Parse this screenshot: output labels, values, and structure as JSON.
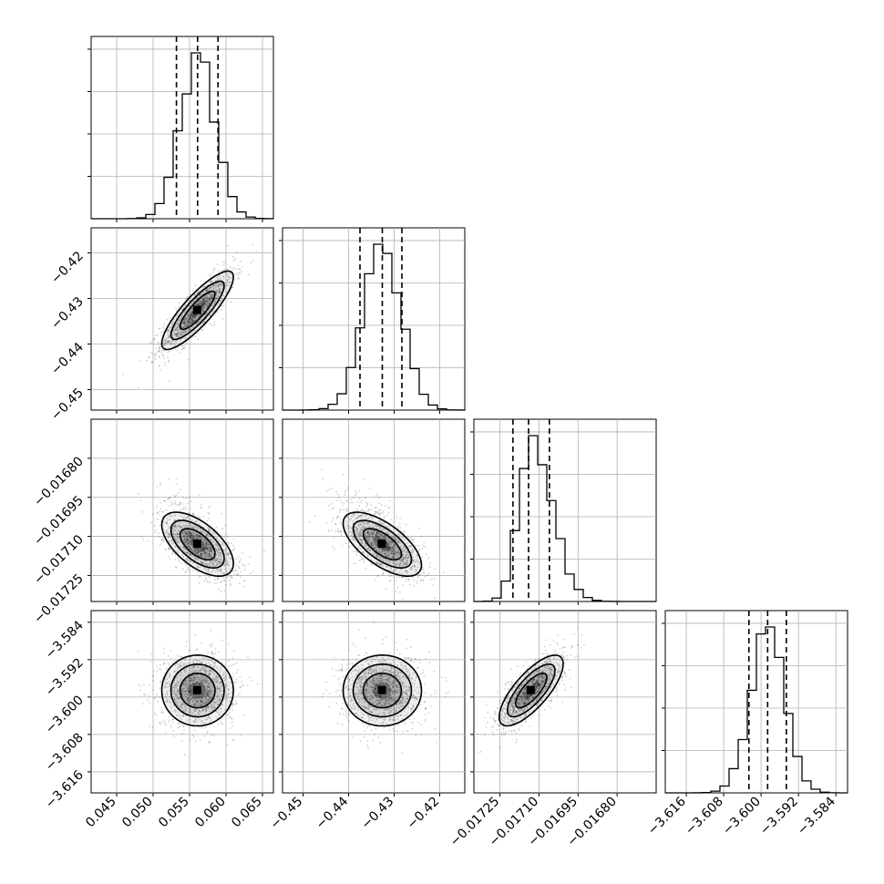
{
  "chart_data": {
    "type": "corner",
    "grid": true,
    "colors": {
      "line": "#000000",
      "grid": "#b0b0b0",
      "points": "#000000"
    },
    "parameters": [
      {
        "ticks": [
          "0.045",
          "0.050",
          "0.055",
          "0.060",
          "0.065"
        ],
        "tick_values": [
          0.045,
          0.05,
          0.055,
          0.06,
          0.065
        ],
        "range": [
          0.0415,
          0.0665
        ],
        "mean": 0.0561,
        "std": 0.0024,
        "quantiles": [
          0.0532,
          0.0561,
          0.0589
        ]
      },
      {
        "ticks": [
          "−0.45",
          "−0.44",
          "−0.43",
          "−0.42"
        ],
        "tick_values": [
          -0.45,
          -0.44,
          -0.43,
          -0.42
        ],
        "range": [
          -0.4545,
          -0.4145
        ],
        "mean": -0.4326,
        "std": 0.0042,
        "quantiles": [
          -0.4375,
          -0.4326,
          -0.4283
        ]
      },
      {
        "ticks": [
          "−0.01725",
          "−0.01710",
          "−0.01695",
          "−0.01680"
        ],
        "tick_values": [
          -0.01725,
          -0.0171,
          -0.01695,
          -0.0168
        ],
        "range": [
          -0.01735,
          -0.01665
        ],
        "mean": -0.01713,
        "std": 6e-05,
        "quantiles": [
          -0.0172,
          -0.01714,
          -0.01706
        ]
      },
      {
        "ticks": [
          "−3.616",
          "−3.608",
          "−3.600",
          "−3.592",
          "−3.584"
        ],
        "tick_values": [
          -3.616,
          -3.608,
          -3.6,
          -3.592,
          -3.584
        ],
        "range": [
          -3.6205,
          -3.5815
        ],
        "mean": -3.5986,
        "std": 0.0037,
        "quantiles": [
          -3.6026,
          -3.5986,
          -3.5946
        ]
      }
    ],
    "correlations": [
      {
        "pair": [
          1,
          0
        ],
        "rho": 0.85
      },
      {
        "pair": [
          2,
          0
        ],
        "rho": -0.6
      },
      {
        "pair": [
          2,
          1
        ],
        "rho": -0.65
      },
      {
        "pair": [
          3,
          0
        ],
        "rho": 0.0
      },
      {
        "pair": [
          3,
          1
        ],
        "rho": 0.0
      },
      {
        "pair": [
          3,
          2
        ],
        "rho": 0.75
      }
    ]
  }
}
